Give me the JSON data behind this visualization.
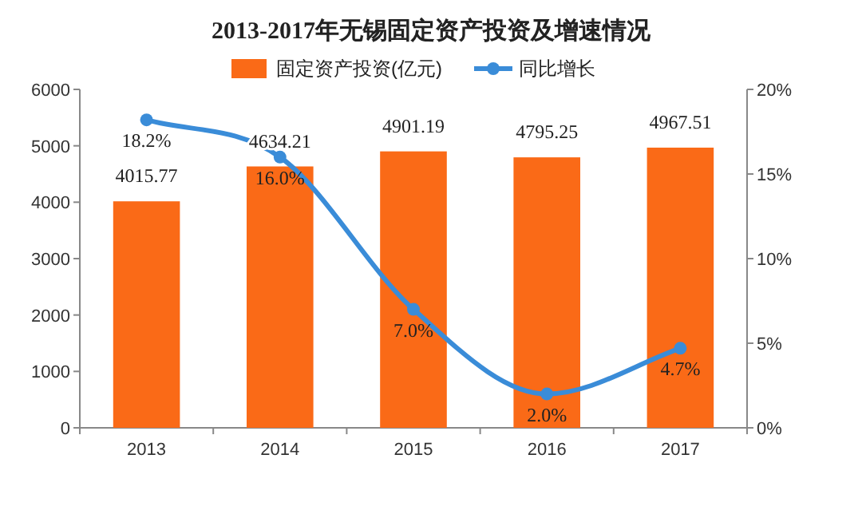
{
  "chart_data": {
    "type": "bar",
    "title": "2013-2017年无锡固定资产投资及增速情况",
    "categories": [
      "2013",
      "2014",
      "2015",
      "2016",
      "2017"
    ],
    "series": [
      {
        "name": "固定资产投资(亿元)",
        "color": "#fa6a17",
        "values": [
          4015.77,
          4634.21,
          4901.19,
          4795.25,
          4967.51
        ],
        "value_labels": [
          "4015.77",
          "4634.21",
          "4901.19",
          "4795.25",
          "4967.51"
        ]
      },
      {
        "name": "同比增长",
        "type": "line",
        "axis": "y2",
        "color": "#3a8cd8",
        "values": [
          18.2,
          16.0,
          7.0,
          2.0,
          4.7
        ],
        "value_labels": [
          "18.2%",
          "16.0%",
          "7.0%",
          "2.0%",
          "4.7%"
        ]
      }
    ],
    "ylim": [
      0,
      6000
    ],
    "yticks": [
      0,
      1000,
      2000,
      3000,
      4000,
      5000,
      6000
    ],
    "y2lim": [
      0,
      20
    ],
    "y2ticks": [
      {
        "value": 0,
        "label": "0%"
      },
      {
        "value": 5,
        "label": "5%"
      },
      {
        "value": 10,
        "label": "10%"
      },
      {
        "value": 15,
        "label": "15%"
      },
      {
        "value": 20,
        "label": "20%"
      }
    ],
    "legend": "top",
    "marker": "circle",
    "grid": false
  }
}
